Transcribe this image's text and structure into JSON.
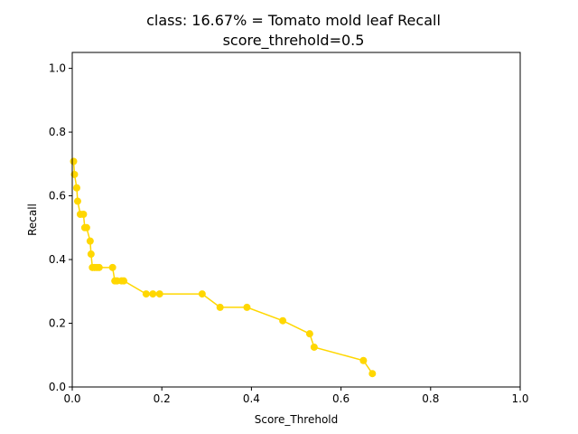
{
  "chart_data": {
    "type": "line",
    "title_line1": "class: 16.67% = Tomato mold leaf Recall",
    "title_line2": "score_threhold=0.5",
    "xlabel": "Score_Threhold",
    "ylabel": "Recall",
    "xlim": [
      0.0,
      1.0
    ],
    "ylim": [
      0.0,
      1.05
    ],
    "xticks": [
      "0.0",
      "0.2",
      "0.4",
      "0.6",
      "0.8",
      "1.0"
    ],
    "yticks": [
      "0.0",
      "0.2",
      "0.4",
      "0.6",
      "0.8",
      "1.0"
    ],
    "grid": false,
    "line_color": "#FFD700",
    "marker": "circle",
    "series": [
      {
        "x": [
          0.003,
          0.005,
          0.01,
          0.012,
          0.018,
          0.025,
          0.028,
          0.032,
          0.04,
          0.042,
          0.045,
          0.05,
          0.055,
          0.06,
          0.09,
          0.095,
          0.1,
          0.11,
          0.115,
          0.165,
          0.18,
          0.195,
          0.29,
          0.33,
          0.39,
          0.47,
          0.53,
          0.54,
          0.65,
          0.67
        ],
        "y": [
          0.708,
          0.667,
          0.625,
          0.583,
          0.542,
          0.542,
          0.5,
          0.5,
          0.458,
          0.417,
          0.375,
          0.375,
          0.375,
          0.375,
          0.375,
          0.333,
          0.333,
          0.333,
          0.333,
          0.292,
          0.292,
          0.292,
          0.292,
          0.25,
          0.25,
          0.208,
          0.167,
          0.125,
          0.083,
          0.042
        ]
      }
    ]
  }
}
